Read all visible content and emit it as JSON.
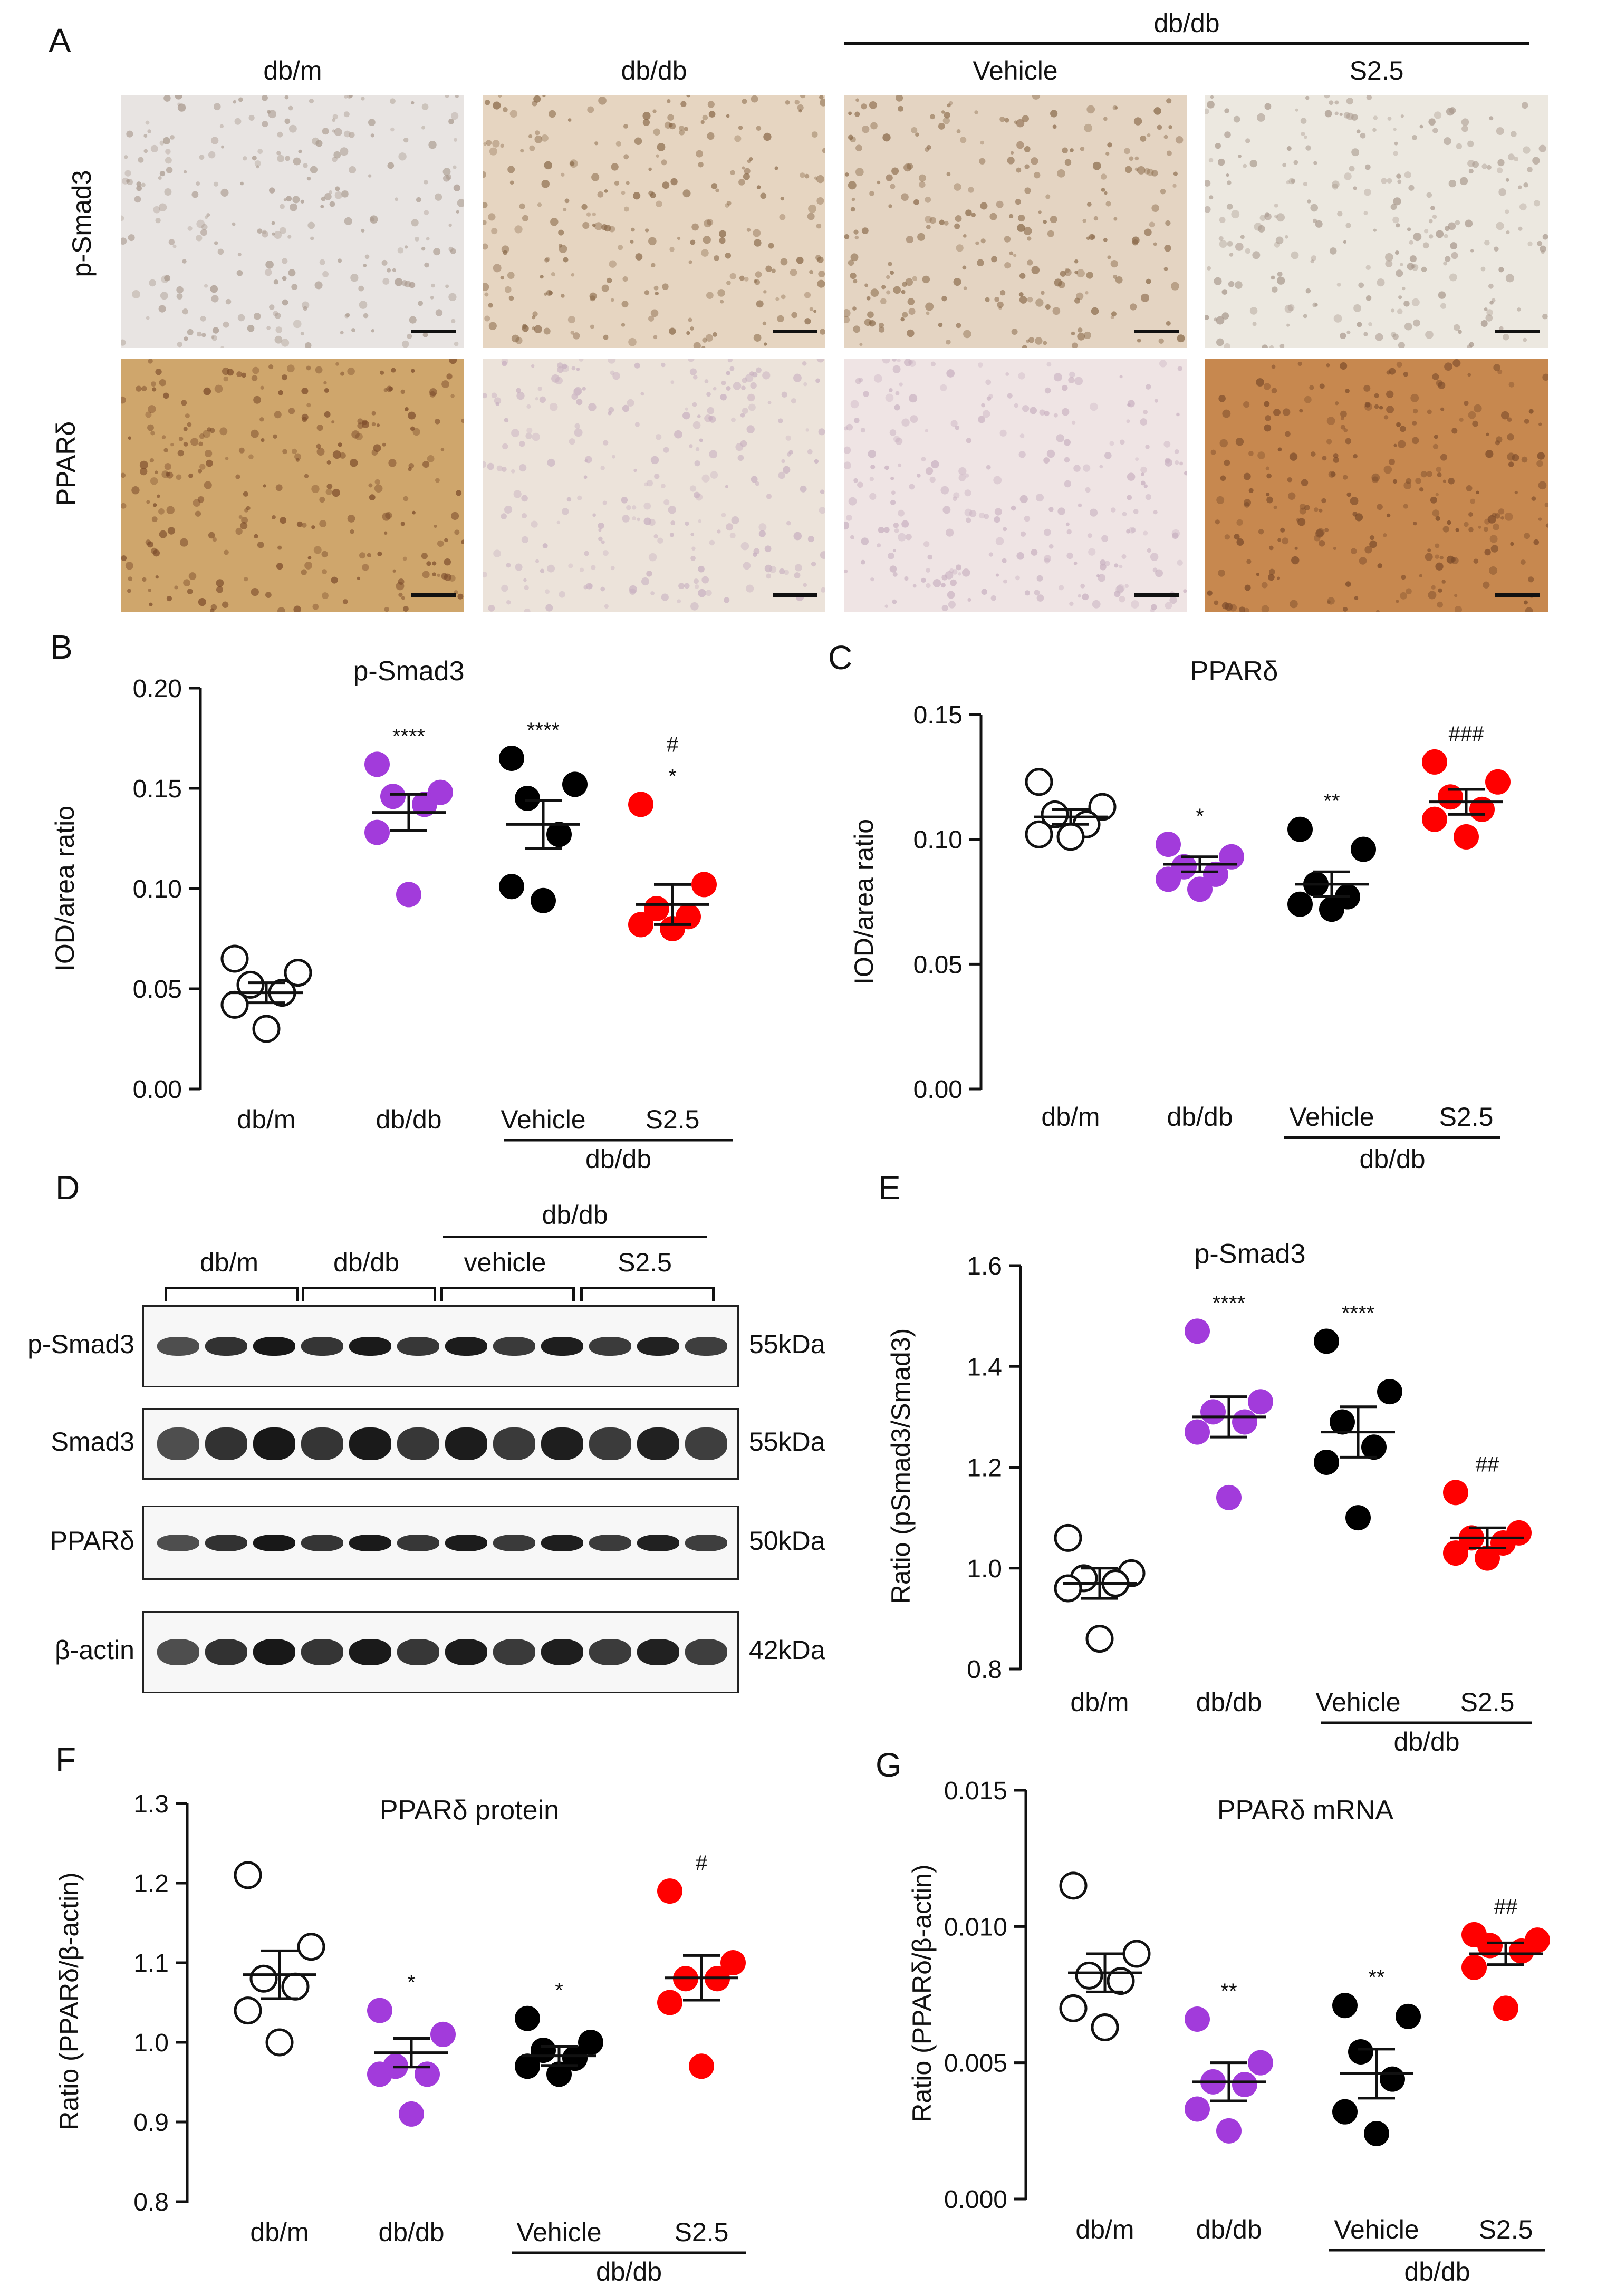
{
  "panelA": {
    "letter": "A",
    "columns": [
      "db/m",
      "db/db",
      "Vehicle",
      "S2.5"
    ],
    "group_label": "db/db",
    "rows": [
      "p-Smad3",
      "PPARδ"
    ],
    "image_colors": {
      "p-Smad3": [
        "#e8e4e2",
        "#e6d5c1",
        "#e4d4c2",
        "#ece8e0"
      ],
      "PPARδ": [
        "#cfa66c",
        "#ece3da",
        "#efe4e4",
        "#c7884f"
      ]
    }
  },
  "panelD": {
    "letter": "D",
    "group_label": "db/db",
    "groups": [
      "db/m",
      "db/db",
      "vehicle",
      "S2.5"
    ],
    "rows": [
      {
        "name": "p-Smad3",
        "kda": "55kDa"
      },
      {
        "name": "Smad3",
        "kda": "55kDa"
      },
      {
        "name": "PPARδ",
        "kda": "50kDa"
      },
      {
        "name": "β-actin",
        "kda": "42kDa"
      }
    ]
  },
  "chart_data": [
    {
      "panel": "B",
      "type": "scatter",
      "title": "p-Smad3",
      "ylabel": "IOD/area ratio",
      "ylim": [
        0,
        0.2
      ],
      "yticks": [
        "0.00",
        "0.05",
        "0.10",
        "0.15",
        "0.20"
      ],
      "categories": [
        "db/m",
        "db/db",
        "Vehicle",
        "S2.5"
      ],
      "group_label": "db/db",
      "colors": [
        "open",
        "#a23bdb",
        "#000000",
        "#ff0000"
      ],
      "points": [
        [
          0.065,
          0.058,
          0.052,
          0.048,
          0.042,
          0.03
        ],
        [
          0.162,
          0.148,
          0.146,
          0.142,
          0.128,
          0.097
        ],
        [
          0.165,
          0.152,
          0.145,
          0.127,
          0.101,
          0.094
        ],
        [
          0.142,
          0.102,
          0.09,
          0.086,
          0.082,
          0.08
        ]
      ],
      "means": [
        0.048,
        0.138,
        0.132,
        0.092
      ],
      "sem": [
        0.005,
        0.009,
        0.012,
        0.01
      ],
      "annotations": [
        [
          "",
          ""
        ],
        [
          "****",
          ""
        ],
        [
          "****",
          ""
        ],
        [
          "*",
          "#"
        ]
      ]
    },
    {
      "panel": "C",
      "type": "scatter",
      "title": "PPARδ",
      "ylabel": "IOD/area ratio",
      "ylim": [
        0,
        0.15
      ],
      "yticks": [
        "0.00",
        "0.05",
        "0.10",
        "0.15"
      ],
      "categories": [
        "db/m",
        "db/db",
        "Vehicle",
        "S2.5"
      ],
      "group_label": "db/db",
      "colors": [
        "open",
        "#a23bdb",
        "#000000",
        "#ff0000"
      ],
      "points": [
        [
          0.123,
          0.113,
          0.11,
          0.106,
          0.102,
          0.101
        ],
        [
          0.098,
          0.093,
          0.089,
          0.086,
          0.084,
          0.08
        ],
        [
          0.104,
          0.096,
          0.082,
          0.077,
          0.074,
          0.072
        ],
        [
          0.131,
          0.123,
          0.117,
          0.112,
          0.108,
          0.101
        ]
      ],
      "means": [
        0.109,
        0.09,
        0.082,
        0.115
      ],
      "sem": [
        0.003,
        0.003,
        0.005,
        0.005
      ],
      "annotations": [
        [
          "",
          ""
        ],
        [
          "*",
          ""
        ],
        [
          "**",
          ""
        ],
        [
          "###",
          ""
        ]
      ]
    },
    {
      "panel": "E",
      "type": "scatter",
      "title": "p-Smad3",
      "ylabel": "Ratio (pSmad3/Smad3)",
      "ylim": [
        0.8,
        1.6
      ],
      "yticks": [
        "0.8",
        "1.0",
        "1.2",
        "1.4",
        "1.6"
      ],
      "categories": [
        "db/m",
        "db/db",
        "Vehicle",
        "S2.5"
      ],
      "group_label": "db/db",
      "colors": [
        "open",
        "#a23bdb",
        "#000000",
        "#ff0000"
      ],
      "points": [
        [
          1.06,
          0.99,
          0.98,
          0.97,
          0.96,
          0.86
        ],
        [
          1.47,
          1.33,
          1.31,
          1.29,
          1.27,
          1.14
        ],
        [
          1.45,
          1.35,
          1.29,
          1.24,
          1.21,
          1.1
        ],
        [
          1.15,
          1.07,
          1.06,
          1.05,
          1.03,
          1.02
        ]
      ],
      "means": [
        0.97,
        1.3,
        1.27,
        1.06
      ],
      "sem": [
        0.03,
        0.04,
        0.05,
        0.02
      ],
      "annotations": [
        [
          "",
          ""
        ],
        [
          "****",
          ""
        ],
        [
          "****",
          ""
        ],
        [
          "##",
          ""
        ]
      ]
    },
    {
      "panel": "F",
      "type": "scatter",
      "title": "PPARδ protein",
      "ylabel": "Ratio (PPARδ/β-actin)",
      "ylim": [
        0.8,
        1.3
      ],
      "yticks": [
        "0.8",
        "0.9",
        "1.0",
        "1.1",
        "1.2",
        "1.3"
      ],
      "categories": [
        "db/m",
        "db/db",
        "Vehicle",
        "S2.5"
      ],
      "group_label": "db/db",
      "colors": [
        "open",
        "#a23bdb",
        "#000000",
        "#ff0000"
      ],
      "points": [
        [
          1.21,
          1.12,
          1.08,
          1.07,
          1.04,
          1.0
        ],
        [
          1.04,
          1.01,
          0.97,
          0.96,
          0.96,
          0.91
        ],
        [
          1.03,
          1.0,
          0.99,
          0.98,
          0.97,
          0.96
        ],
        [
          1.19,
          1.1,
          1.08,
          1.08,
          1.05,
          0.97
        ]
      ],
      "means": [
        1.085,
        0.987,
        0.983,
        1.081
      ],
      "sem": [
        0.03,
        0.018,
        0.012,
        0.028
      ],
      "annotations": [
        [
          "",
          ""
        ],
        [
          "*",
          ""
        ],
        [
          "*",
          ""
        ],
        [
          "#",
          ""
        ]
      ]
    },
    {
      "panel": "G",
      "type": "scatter",
      "title": "PPARδ mRNA",
      "ylabel": "Ratio (PPARδ/β-actin)",
      "ylim": [
        0,
        0.015
      ],
      "yticks": [
        "0.000",
        "0.005",
        "0.010",
        "0.015"
      ],
      "categories": [
        "db/m",
        "db/db",
        "Vehicle",
        "S2.5"
      ],
      "group_label": "db/db",
      "colors": [
        "open",
        "#a23bdb",
        "#000000",
        "#ff0000"
      ],
      "points": [
        [
          0.0115,
          0.009,
          0.0082,
          0.008,
          0.007,
          0.0063
        ],
        [
          0.0066,
          0.005,
          0.0043,
          0.0042,
          0.0033,
          0.0025
        ],
        [
          0.0071,
          0.0067,
          0.0054,
          0.0044,
          0.0032,
          0.0024
        ],
        [
          0.0097,
          0.0095,
          0.0093,
          0.0091,
          0.0085,
          0.007
        ]
      ],
      "means": [
        0.0083,
        0.0043,
        0.0046,
        0.009
      ],
      "sem": [
        0.0007,
        0.0007,
        0.0009,
        0.0004
      ],
      "annotations": [
        [
          "",
          ""
        ],
        [
          "**",
          ""
        ],
        [
          "**",
          ""
        ],
        [
          "##",
          ""
        ]
      ]
    }
  ]
}
